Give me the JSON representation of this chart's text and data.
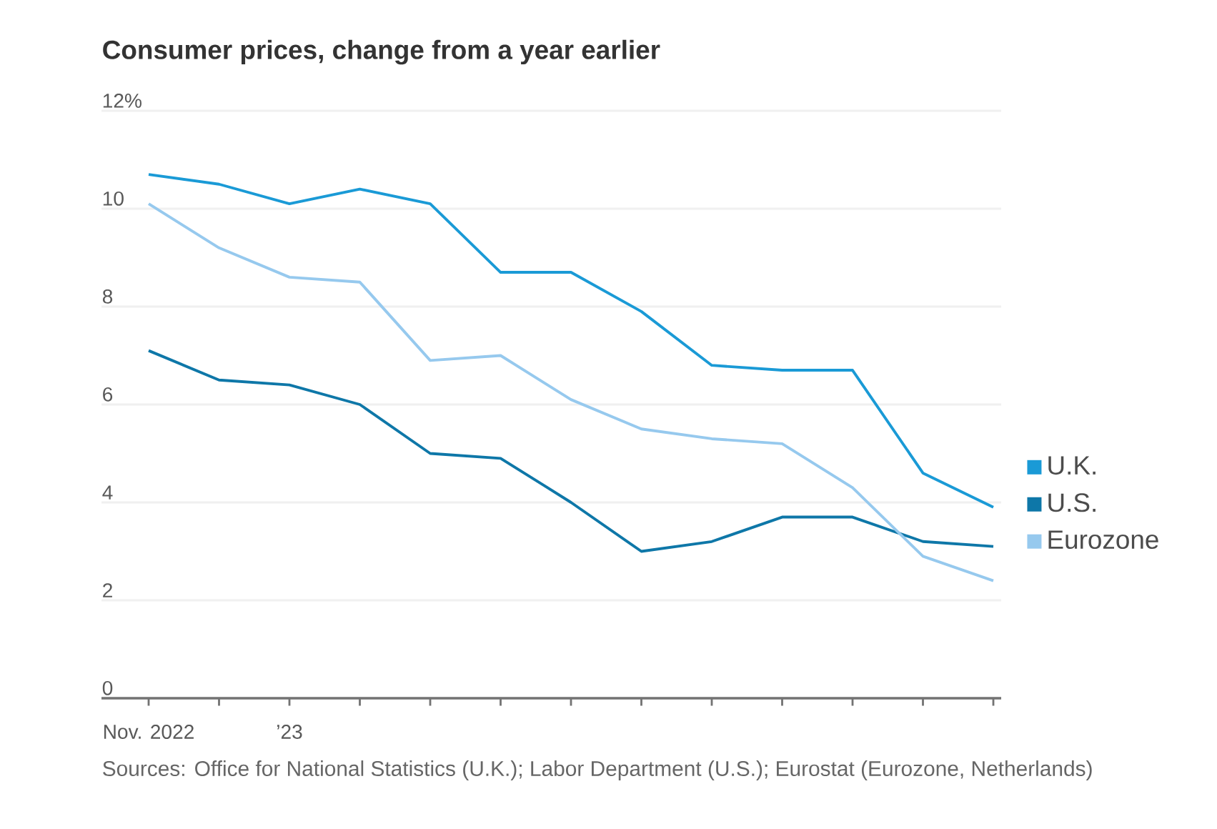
{
  "chart_data": {
    "type": "line",
    "title": "Consumer prices, change from a year earlier",
    "categories": [
      "Nov. 2022",
      null,
      "’23",
      null,
      null,
      null,
      null,
      null,
      null,
      null,
      null,
      null,
      null
    ],
    "series": [
      {
        "name": "U.K.",
        "color": "#1a9ad6",
        "values": [
          10.7,
          10.5,
          10.1,
          10.4,
          10.1,
          8.7,
          8.7,
          7.9,
          6.8,
          6.7,
          6.7,
          4.6,
          3.9
        ]
      },
      {
        "name": "U.S.",
        "color": "#0e77a8",
        "values": [
          7.1,
          6.5,
          6.4,
          6.0,
          5.0,
          4.9,
          4.0,
          3.0,
          3.2,
          3.7,
          3.7,
          3.2,
          3.1
        ]
      },
      {
        "name": "Eurozone",
        "color": "#96c9ee",
        "values": [
          10.1,
          9.2,
          8.6,
          8.5,
          6.9,
          7.0,
          6.1,
          5.5,
          5.3,
          5.2,
          4.3,
          2.9,
          2.4
        ]
      }
    ],
    "ylim": [
      0,
      12
    ],
    "yticks": [
      0,
      2,
      4,
      6,
      8,
      10,
      {
        "value": 12,
        "label": "12%"
      }
    ],
    "grid": "y",
    "legend": "right",
    "marker": "none",
    "line_style": "solid",
    "annotations": [
      "Sources: Office for National Statistics (U.K.); Labor Department (U.S.); Eurostat (Eurozone, Netherlands)"
    ]
  }
}
